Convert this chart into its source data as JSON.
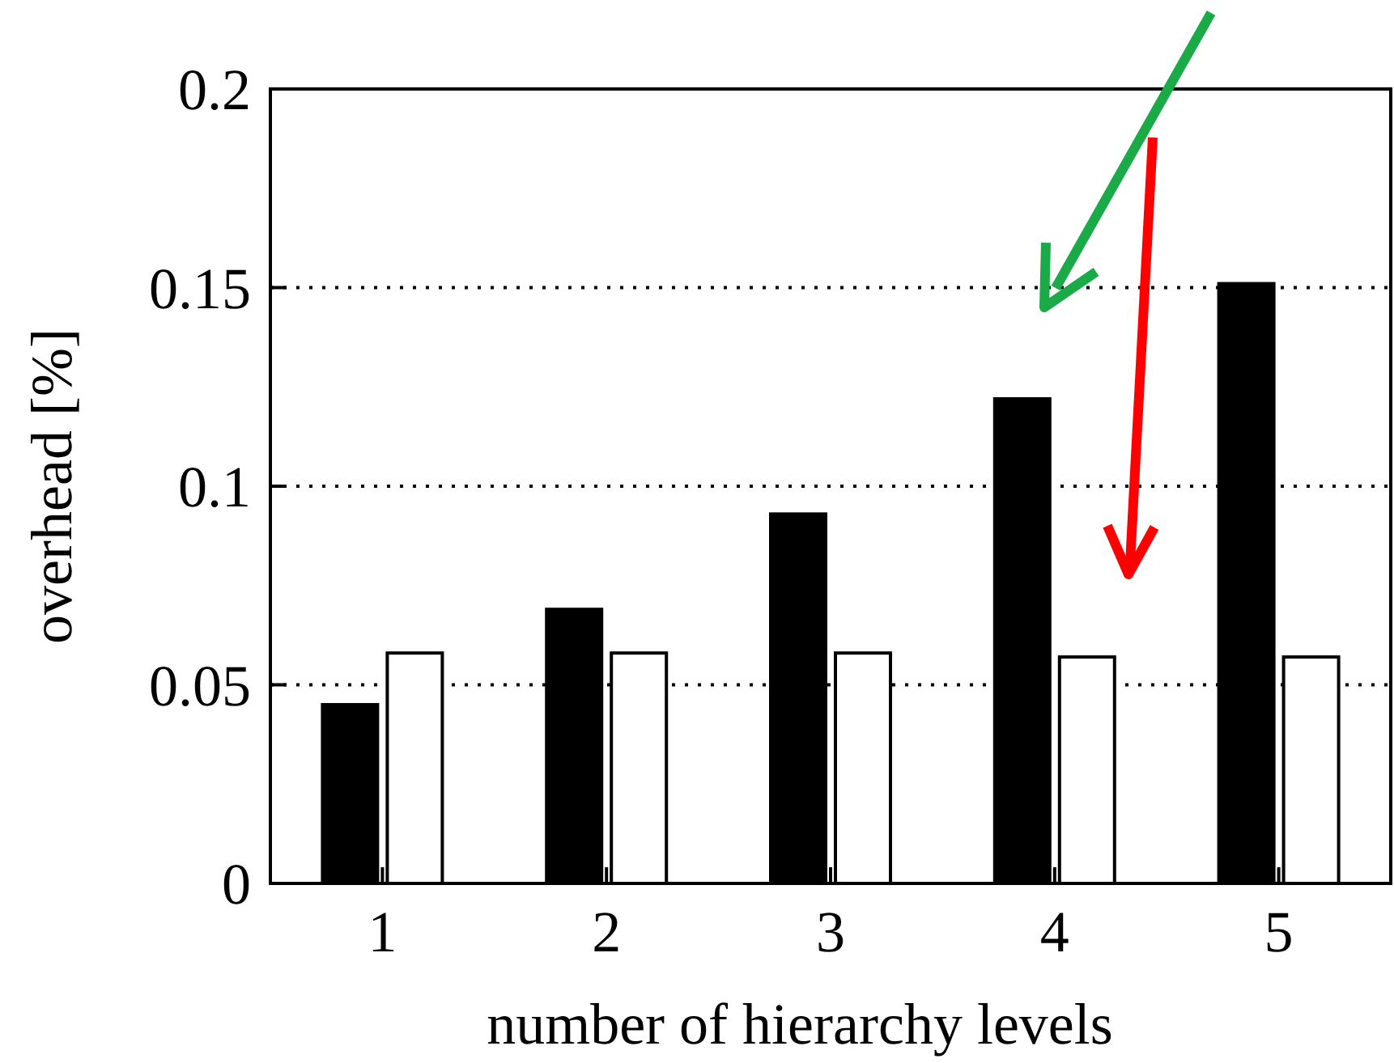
{
  "chart_data": {
    "type": "bar",
    "xlabel": "number of hierarchy levels",
    "ylabel": "overhead [%]",
    "categories": [
      "1",
      "2",
      "3",
      "4",
      "5"
    ],
    "series": [
      {
        "color": "#000000",
        "values": [
          0.045,
          0.069,
          0.093,
          0.122,
          0.151
        ]
      },
      {
        "color": "#ffffff",
        "values": [
          0.058,
          0.058,
          0.058,
          0.057,
          0.057
        ]
      }
    ],
    "ylim": [
      0,
      0.2
    ],
    "yticks": [
      0,
      0.05,
      0.1,
      0.15,
      0.2
    ],
    "grid": "y"
  }
}
